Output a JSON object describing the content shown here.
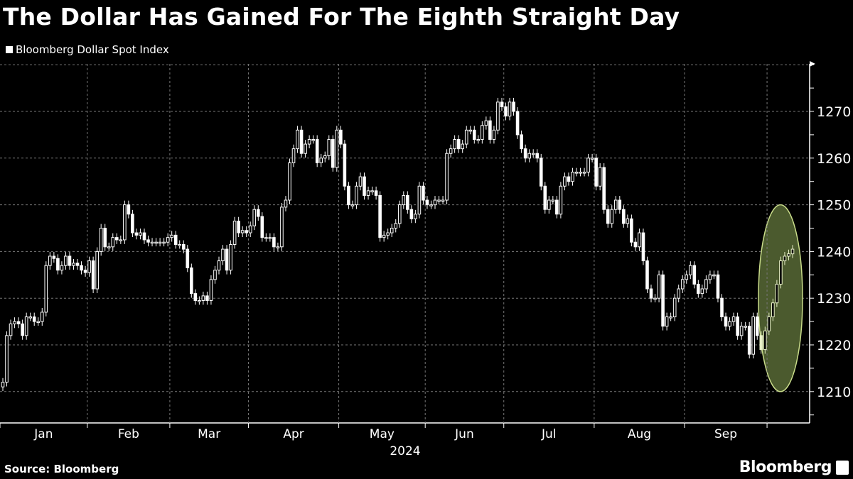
{
  "chart_data": {
    "type": "candlestick",
    "title": "The Dollar Has Gained For The Eighth Straight Day",
    "legend": [
      {
        "name": "Bloomberg Dollar Spot Index",
        "color": "#ffffff"
      }
    ],
    "xlabel": "2024",
    "ylabel": "",
    "ylim": [
      1203,
      1280
    ],
    "y_ticks": [
      1210,
      1220,
      1230,
      1240,
      1250,
      1260,
      1270
    ],
    "x_tick_labels": [
      "Jan",
      "Feb",
      "Mar",
      "Apr",
      "May",
      "Jun",
      "Jul",
      "Aug",
      "Sep"
    ],
    "grid": true,
    "highlight": {
      "type": "ellipse",
      "fill": "#4b5a2e",
      "stroke": "#c9dc8a",
      "range": [
        1210,
        1250
      ]
    },
    "months": [
      {
        "label": "Jan",
        "close": [
          1212,
          1222,
          1224.5,
          1225,
          1224.5,
          1222,
          1226,
          1226,
          1225,
          1225,
          1227,
          1237,
          1239,
          1238.5,
          1236,
          1237,
          1239,
          1237,
          1237.5,
          1237,
          1236,
          1235.5
        ]
      },
      {
        "label": "Feb",
        "close": [
          1238,
          1232,
          1240,
          1245,
          1241,
          1241,
          1243,
          1242.5,
          1242.5,
          1250,
          1248,
          1244,
          1243.5,
          1244,
          1242.5,
          1242,
          1242,
          1242,
          1242,
          1242,
          1243
        ]
      },
      {
        "label": "Mar",
        "close": [
          1243.5,
          1241.5,
          1241.5,
          1240.5,
          1236.5,
          1231,
          1229.5,
          1229.5,
          1230.5,
          1229.5,
          1234,
          1236,
          1238,
          1240.5,
          1236,
          1241.5,
          1246.5,
          1244,
          1244.5,
          1244
        ]
      },
      {
        "label": "Apr",
        "close": [
          1245.5,
          1249,
          1247.5,
          1243,
          1243,
          1243,
          1241,
          1241,
          1249.5,
          1251,
          1259,
          1262,
          1266,
          1261,
          1263,
          1264,
          1264,
          1259,
          1260,
          1260.5,
          1264,
          1258,
          1266
        ]
      },
      {
        "label": "May",
        "close": [
          1263,
          1254,
          1250,
          1250,
          1254,
          1256,
          1252,
          1253,
          1253,
          1252,
          1243,
          1243.5,
          1244,
          1245,
          1246,
          1250,
          1252,
          1249,
          1247,
          1248,
          1254,
          1251
        ]
      },
      {
        "label": "Jun",
        "close": [
          1250,
          1250,
          1251,
          1251,
          1251,
          1261,
          1262,
          1264,
          1262,
          1263,
          1266,
          1266,
          1264,
          1264,
          1267,
          1268,
          1264,
          1266,
          1272,
          1271
        ]
      },
      {
        "label": "Jul",
        "close": [
          1269,
          1272,
          1270,
          1265,
          1262,
          1260,
          1261,
          1261,
          1260,
          1254,
          1249,
          1251,
          1251,
          1248,
          1254,
          1256,
          1255,
          1257,
          1257,
          1257,
          1257,
          1260,
          1260
        ]
      },
      {
        "label": "Aug",
        "close": [
          1254,
          1258,
          1249,
          1246,
          1249,
          1251,
          1249,
          1246,
          1247,
          1242,
          1241,
          1244,
          1238,
          1232,
          1230,
          1230,
          1235,
          1224,
          1226,
          1226,
          1230,
          1232,
          1234
        ]
      },
      {
        "label": "Sep",
        "close": [
          1235,
          1237,
          1233,
          1231,
          1232,
          1234,
          1235,
          1235,
          1230,
          1226,
          1224,
          1225,
          1226,
          1222,
          1224,
          1224,
          1218,
          1226,
          1222,
          1219,
          1223
        ]
      },
      {
        "label": "",
        "close": [
          1226,
          1229,
          1233,
          1238,
          1239,
          1239.5,
          1240.5
        ]
      }
    ]
  },
  "footer": {
    "source": "Source: Bloomberg",
    "logo": "Bloomberg"
  }
}
